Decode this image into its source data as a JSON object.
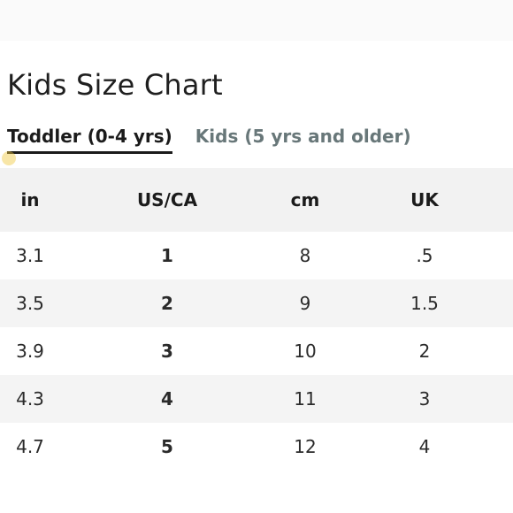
{
  "page": {
    "title": "Kids Size Chart"
  },
  "tabs": [
    {
      "label": "Toddler (0-4 yrs)",
      "active": true
    },
    {
      "label": "Kids (5 yrs and older)",
      "active": false
    }
  ],
  "table": {
    "headers": [
      "in",
      "US/CA",
      "cm",
      "UK"
    ],
    "rows": [
      [
        "3.1",
        "1",
        "8",
        ".5"
      ],
      [
        "3.5",
        "2",
        "9",
        "1.5"
      ],
      [
        "3.9",
        "3",
        "10",
        "2"
      ],
      [
        "4.3",
        "4",
        "11",
        "3"
      ],
      [
        "4.7",
        "5",
        "12",
        "4"
      ]
    ]
  },
  "colors": {
    "active_tab": "#1b1b1b",
    "inactive_tab": "#687779",
    "header_bg": "#f2f2f2",
    "stripe_bg": "#f4f4f4"
  }
}
